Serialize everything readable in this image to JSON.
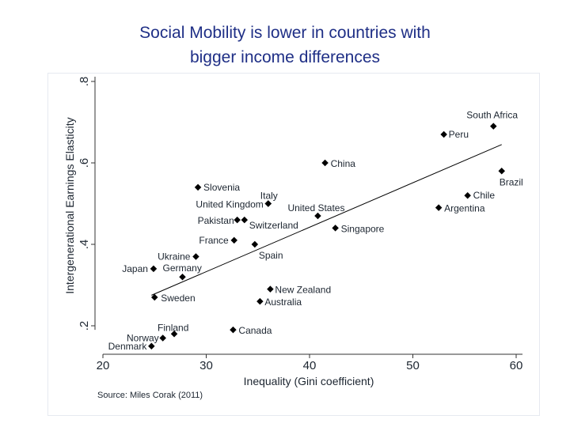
{
  "title": {
    "line1": "Social Mobility is lower in countries with",
    "line2": "bigger income differences"
  },
  "source": "Source: Miles Corak (2011)",
  "colors": {
    "title": "#1f2f86",
    "text": "#1c2530",
    "points": "#000000"
  },
  "chart_data": {
    "type": "scatter",
    "title": "Social Mobility is lower in countries with bigger income differences",
    "xlabel": "Inequality (Gini coefficient)",
    "ylabel": "Intergenerational Earnings Elasticity",
    "xlim": [
      20,
      60
    ],
    "ylim": [
      0.13,
      0.8
    ],
    "xticks": [
      20,
      30,
      40,
      50,
      60
    ],
    "yticks": [
      0.2,
      0.4,
      0.6,
      0.8
    ],
    "ytick_labels": [
      ".2",
      ".4",
      ".6",
      ".8"
    ],
    "grid": false,
    "points": [
      {
        "label": "South Africa",
        "x": 57.8,
        "y": 0.69
      },
      {
        "label": "Peru",
        "x": 53.0,
        "y": 0.67
      },
      {
        "label": "China",
        "x": 41.5,
        "y": 0.6
      },
      {
        "label": "Brazil",
        "x": 58.6,
        "y": 0.58
      },
      {
        "label": "Slovenia",
        "x": 29.2,
        "y": 0.54
      },
      {
        "label": "Chile",
        "x": 55.3,
        "y": 0.52
      },
      {
        "label": "Italy",
        "x": 36.0,
        "y": 0.5
      },
      {
        "label": "United Kingdom",
        "x": 36.0,
        "y": 0.5
      },
      {
        "label": "Argentina",
        "x": 52.5,
        "y": 0.49
      },
      {
        "label": "United States",
        "x": 40.8,
        "y": 0.47
      },
      {
        "label": "Switzerland",
        "x": 33.7,
        "y": 0.46
      },
      {
        "label": "Pakistan",
        "x": 33.0,
        "y": 0.46
      },
      {
        "label": "Singapore",
        "x": 42.5,
        "y": 0.44
      },
      {
        "label": "France",
        "x": 32.7,
        "y": 0.41
      },
      {
        "label": "Spain",
        "x": 34.7,
        "y": 0.4
      },
      {
        "label": "Ukraine",
        "x": 29.0,
        "y": 0.37
      },
      {
        "label": "Japan",
        "x": 24.9,
        "y": 0.34
      },
      {
        "label": "Germany",
        "x": 27.7,
        "y": 0.32
      },
      {
        "label": "New Zealand",
        "x": 36.2,
        "y": 0.29
      },
      {
        "label": "Sweden",
        "x": 25.0,
        "y": 0.27
      },
      {
        "label": "Australia",
        "x": 35.2,
        "y": 0.26
      },
      {
        "label": "Canada",
        "x": 32.6,
        "y": 0.19
      },
      {
        "label": "Finland",
        "x": 26.9,
        "y": 0.18
      },
      {
        "label": "Norway",
        "x": 25.8,
        "y": 0.17
      },
      {
        "label": "Denmark",
        "x": 24.7,
        "y": 0.15
      }
    ],
    "fit_line": {
      "x": [
        24.7,
        58.6
      ],
      "y": [
        0.275,
        0.645
      ]
    }
  }
}
